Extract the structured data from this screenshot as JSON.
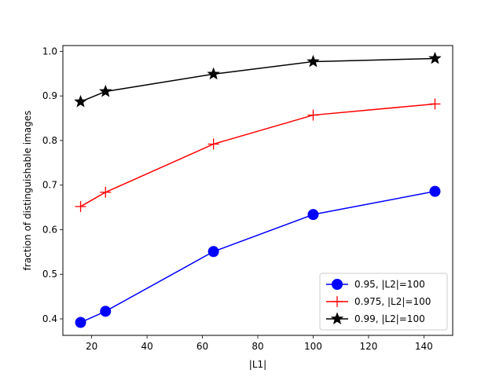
{
  "colors": {
    "background": "#ffffff",
    "axes": "#000000",
    "legend_border": "#cccccc"
  },
  "chart_data": {
    "type": "line",
    "title": "",
    "xlabel": "|L1|",
    "ylabel": "fraction of distinguishable images",
    "xlim": [
      9.6,
      150.4
    ],
    "ylim": [
      0.363,
      1.013
    ],
    "x_ticks": [
      20,
      40,
      60,
      80,
      100,
      120,
      140
    ],
    "x_tick_labels": [
      "20",
      "40",
      "60",
      "80",
      "100",
      "120",
      "140"
    ],
    "y_ticks": [
      0.4,
      0.5,
      0.6,
      0.7,
      0.8,
      0.9,
      1.0
    ],
    "y_tick_labels": [
      "0.4",
      "0.5",
      "0.6",
      "0.7",
      "0.8",
      "0.9",
      "1.0"
    ],
    "grid": false,
    "legend_position": "lower-right",
    "x": [
      16,
      25,
      64,
      100,
      144
    ],
    "series": [
      {
        "name": "0.95, |L2|=100",
        "color": "#0000ff",
        "marker": "circle",
        "values": [
          0.392,
          0.417,
          0.551,
          0.634,
          0.686
        ]
      },
      {
        "name": "0.975, |L2|=100",
        "color": "#ff0000",
        "marker": "plus",
        "values": [
          0.652,
          0.684,
          0.792,
          0.857,
          0.882
        ]
      },
      {
        "name": "0.99, |L2|=100",
        "color": "#000000",
        "marker": "star",
        "values": [
          0.887,
          0.91,
          0.949,
          0.977,
          0.984
        ]
      }
    ]
  }
}
